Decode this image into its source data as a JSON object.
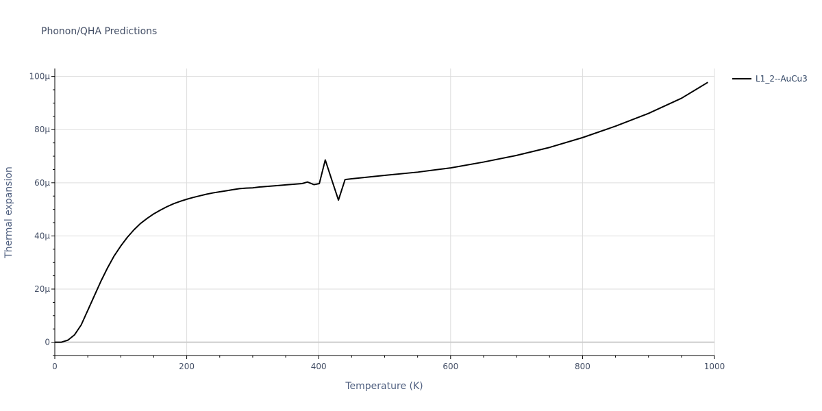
{
  "chart_data": {
    "type": "line",
    "title": "Phonon/QHA Predictions",
    "xlabel": "Temperature (K)",
    "ylabel": "Thermal expansion",
    "xlim": [
      0,
      1000
    ],
    "ylim": [
      -5e-06,
      0.000103
    ],
    "x_ticks": [
      0,
      200,
      400,
      600,
      800,
      1000
    ],
    "x_tick_labels": [
      "0",
      "200",
      "400",
      "600",
      "800",
      "1000"
    ],
    "y_ticks": [
      0,
      2e-05,
      4e-05,
      6e-05,
      8e-05,
      0.0001
    ],
    "y_tick_labels": [
      "0",
      "20μ",
      "40μ",
      "60μ",
      "80μ",
      "100μ"
    ],
    "grid": true,
    "legend_position": "top-right",
    "series": [
      {
        "name": "L1_2--AuCu3",
        "color": "#000000",
        "x": [
          0,
          10,
          20,
          30,
          40,
          50,
          60,
          70,
          80,
          90,
          100,
          110,
          120,
          130,
          140,
          150,
          160,
          170,
          180,
          190,
          200,
          210,
          220,
          230,
          240,
          250,
          260,
          270,
          280,
          290,
          300,
          310,
          320,
          330,
          340,
          350,
          360,
          370,
          375,
          383,
          393,
          401,
          410,
          420,
          430,
          440,
          450,
          500,
          550,
          600,
          650,
          700,
          750,
          800,
          850,
          900,
          950,
          990
        ],
        "y": [
          0,
          0,
          8e-07,
          2.8e-06,
          6.5e-06,
          1.2e-05,
          1.75e-05,
          2.3e-05,
          2.8e-05,
          3.25e-05,
          3.62e-05,
          3.95e-05,
          4.23e-05,
          4.47e-05,
          4.66e-05,
          4.83e-05,
          4.97e-05,
          5.1e-05,
          5.21e-05,
          5.3e-05,
          5.38e-05,
          5.45e-05,
          5.51e-05,
          5.57e-05,
          5.62e-05,
          5.66e-05,
          5.7e-05,
          5.74e-05,
          5.78e-05,
          5.8e-05,
          5.81e-05,
          5.84e-05,
          5.86e-05,
          5.88e-05,
          5.9e-05,
          5.92e-05,
          5.94e-05,
          5.96e-05,
          5.97e-05,
          6.03e-05,
          5.93e-05,
          5.97e-05,
          6.86e-05,
          6.1e-05,
          5.35e-05,
          6.12e-05,
          6.15e-05,
          6.28e-05,
          6.4e-05,
          6.56e-05,
          6.78e-05,
          7.03e-05,
          7.33e-05,
          7.7e-05,
          8.13e-05,
          8.61e-05,
          9.18e-05,
          9.78e-05
        ]
      }
    ]
  }
}
